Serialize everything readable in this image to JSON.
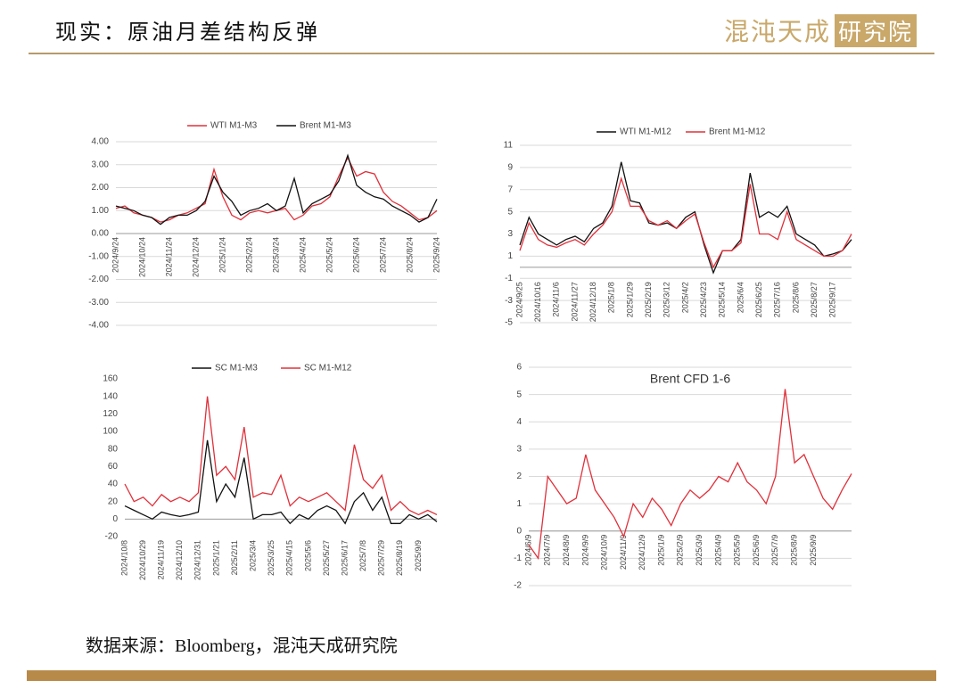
{
  "header": {
    "title": "现实：原油月差结构反弹",
    "logo": "混沌天成",
    "logo_box": "研究院"
  },
  "footer": {
    "source": "数据来源：Bloomberg，混沌天成研究院"
  },
  "chart_data": [
    {
      "type": "line",
      "legend": "top",
      "grid": true,
      "categories": [
        "2024/9/24",
        null,
        null,
        "2024/10/24",
        null,
        null,
        "2024/11/24",
        null,
        null,
        "2024/12/24",
        null,
        null,
        "2025/1/24",
        null,
        null,
        "2025/2/24",
        null,
        null,
        "2025/3/24",
        null,
        null,
        "2025/4/24",
        null,
        null,
        "2025/5/24",
        null,
        null,
        "2025/6/24",
        null,
        null,
        "2025/7/24",
        null,
        null,
        "2025/8/24",
        null,
        null,
        "2025/9/24"
      ],
      "series": [
        {
          "name": "WTI M1-M3",
          "color": "#e0303a",
          "values": [
            1.1,
            1.2,
            0.9,
            0.8,
            0.7,
            0.5,
            0.6,
            0.8,
            0.9,
            1.1,
            1.3,
            2.8,
            1.6,
            0.8,
            0.6,
            0.9,
            1.0,
            0.9,
            1.0,
            1.1,
            0.6,
            0.8,
            1.2,
            1.3,
            1.6,
            2.5,
            3.3,
            2.5,
            2.7,
            2.6,
            1.8,
            1.4,
            1.2,
            0.9,
            0.6,
            0.7,
            1.0
          ]
        },
        {
          "name": "Brent M1-M3",
          "color": "#111111",
          "values": [
            1.2,
            1.1,
            1.0,
            0.8,
            0.7,
            0.4,
            0.7,
            0.8,
            0.8,
            1.0,
            1.4,
            2.5,
            1.8,
            1.4,
            0.8,
            1.0,
            1.1,
            1.3,
            1.0,
            1.2,
            2.4,
            0.9,
            1.3,
            1.5,
            1.7,
            2.3,
            3.4,
            2.1,
            1.8,
            1.6,
            1.5,
            1.2,
            1.0,
            0.8,
            0.5,
            0.7,
            1.5
          ]
        }
      ],
      "ylim": [
        -4,
        4
      ],
      "yticks": [
        {
          "value": -4,
          "label": "-4.00"
        },
        {
          "value": -3,
          "label": "-3.00"
        },
        {
          "value": -2,
          "label": "-2.00"
        },
        {
          "value": -1,
          "label": "-1.00"
        },
        {
          "value": 0,
          "label": "0.00"
        },
        {
          "value": 1,
          "label": "1.00"
        },
        {
          "value": 2,
          "label": "2.00"
        },
        {
          "value": 3,
          "label": "3.00"
        },
        {
          "value": 4,
          "label": "4.00"
        }
      ]
    },
    {
      "type": "line",
      "legend": "top",
      "grid": true,
      "categories": [
        "2024/9/25",
        null,
        "2024/10/16",
        null,
        "2024/11/6",
        null,
        "2024/11/27",
        null,
        "2024/12/18",
        null,
        "2025/1/8",
        null,
        "2025/1/29",
        null,
        "2025/2/19",
        null,
        "2025/3/12",
        null,
        "2025/4/2",
        null,
        "2025/4/23",
        null,
        "2025/5/14",
        null,
        "2025/6/4",
        null,
        "2025/6/25",
        null,
        "2025/7/16",
        null,
        "2025/8/6",
        null,
        "2025/8/27",
        null,
        "2025/9/17",
        null,
        null
      ],
      "series": [
        {
          "name": "WTI M1-M12",
          "color": "#111111",
          "values": [
            2.0,
            4.5,
            3.0,
            2.5,
            2.0,
            2.5,
            2.8,
            2.3,
            3.5,
            4.0,
            5.5,
            9.5,
            6.0,
            5.8,
            4.0,
            3.8,
            4.0,
            3.5,
            4.5,
            5.0,
            2.0,
            -0.5,
            1.5,
            1.5,
            2.5,
            8.5,
            4.5,
            5.0,
            4.5,
            5.5,
            3.0,
            2.5,
            2.0,
            1.0,
            1.2,
            1.5,
            2.5
          ]
        },
        {
          "name": "Brent M1-M12",
          "color": "#e0303a",
          "values": [
            1.5,
            4.0,
            2.5,
            2.0,
            1.8,
            2.2,
            2.5,
            2.0,
            3.0,
            3.8,
            5.0,
            8.0,
            5.5,
            5.5,
            4.2,
            3.8,
            4.2,
            3.5,
            4.2,
            4.8,
            2.2,
            0.0,
            1.5,
            1.5,
            2.2,
            7.5,
            3.0,
            3.0,
            2.5,
            5.0,
            2.5,
            2.0,
            1.5,
            1.0,
            1.0,
            1.5,
            3.0
          ]
        }
      ],
      "ylim": [
        -5,
        11
      ],
      "yticks": [
        -5,
        -3,
        -1,
        1,
        3,
        5,
        7,
        9,
        11
      ]
    },
    {
      "type": "line",
      "legend": "top",
      "grid": false,
      "categories": [
        "2024/10/8",
        null,
        "2024/10/29",
        null,
        "2024/11/19",
        null,
        "2024/12/10",
        null,
        "2024/12/31",
        null,
        "2025/1/21",
        null,
        "2025/2/11",
        null,
        "2025/3/4",
        null,
        "2025/3/25",
        null,
        "2025/4/15",
        null,
        "2025/5/6",
        null,
        "2025/5/27",
        null,
        "2025/6/17",
        null,
        "2025/7/8",
        null,
        "2025/7/29",
        null,
        "2025/8/19",
        null,
        "2025/9/9",
        null,
        null
      ],
      "series": [
        {
          "name": "SC M1-M3",
          "color": "#111111",
          "values": [
            15,
            10,
            5,
            0,
            8,
            5,
            3,
            5,
            8,
            90,
            20,
            40,
            25,
            70,
            0,
            5,
            5,
            8,
            -5,
            5,
            0,
            10,
            15,
            10,
            -5,
            20,
            30,
            10,
            25,
            -5,
            -5,
            5,
            0,
            5,
            -3
          ]
        },
        {
          "name": "SC M1-M12",
          "color": "#e0303a",
          "values": [
            40,
            20,
            25,
            15,
            28,
            20,
            25,
            20,
            30,
            140,
            50,
            60,
            45,
            105,
            25,
            30,
            28,
            50,
            15,
            25,
            20,
            25,
            30,
            20,
            10,
            85,
            45,
            35,
            50,
            10,
            20,
            10,
            5,
            10,
            5
          ]
        }
      ],
      "ylim": [
        -20,
        160
      ],
      "yticks": [
        -20,
        0,
        20,
        40,
        60,
        80,
        100,
        120,
        140,
        160
      ]
    },
    {
      "type": "line",
      "title": "Brent CFD 1-6",
      "grid": true,
      "categories": [
        "2024/6/9",
        null,
        "2024/7/9",
        null,
        "2024/8/9",
        null,
        "2024/9/9",
        null,
        "2024/10/9",
        null,
        "2024/11/9",
        null,
        "2024/12/9",
        null,
        "2025/1/9",
        null,
        "2025/2/9",
        null,
        "2025/3/9",
        null,
        "2025/4/9",
        null,
        "2025/5/9",
        null,
        "2025/6/9",
        null,
        "2025/7/9",
        null,
        "2025/8/9",
        null,
        "2025/9/9",
        null,
        null,
        null,
        null
      ],
      "series": [
        {
          "name": "Brent CFD 1-6",
          "color": "#e0303a",
          "values": [
            -0.5,
            -1.0,
            2.0,
            1.5,
            1.0,
            1.2,
            2.8,
            1.5,
            1.0,
            0.5,
            -0.2,
            1.0,
            0.5,
            1.2,
            0.8,
            0.2,
            1.0,
            1.5,
            1.2,
            1.5,
            2.0,
            1.8,
            2.5,
            1.8,
            1.5,
            1.0,
            2.0,
            5.2,
            2.5,
            2.8,
            2.0,
            1.2,
            0.8,
            1.5,
            2.1
          ]
        }
      ],
      "ylim": [
        -2,
        6
      ],
      "yticks": [
        -2,
        -1,
        0,
        1,
        2,
        3,
        4,
        5,
        6
      ]
    }
  ]
}
